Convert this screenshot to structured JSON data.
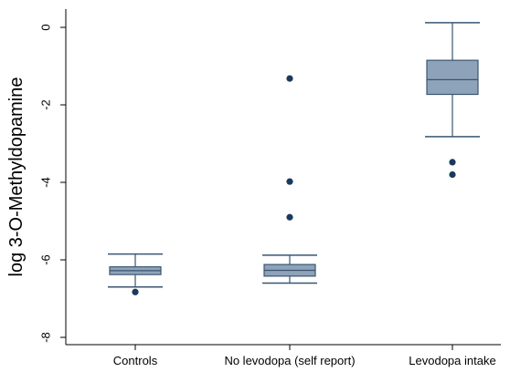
{
  "chart_data": {
    "type": "box",
    "title": "",
    "xlabel": "",
    "ylabel": "log 3-O-Methyldopamine",
    "categories": [
      "Controls",
      "No levodopa (self report)",
      "Levodopa intake"
    ],
    "ylim": [
      -8.5,
      0.5
    ],
    "yticks": [
      0,
      -2,
      -4,
      -6,
      -8
    ],
    "y_tick_labels": [
      "0",
      "-2",
      "-4",
      "-6",
      "-8"
    ],
    "grid": false,
    "colors": {
      "box_fill": "#8ea3ba",
      "box_stroke": "#3a5570",
      "outlier": "#1a3a5c"
    },
    "boxes": [
      {
        "category": "Controls",
        "whisker_low": -6.7,
        "q1": -6.38,
        "median": -6.28,
        "q3": -6.18,
        "whisker_high": -5.85,
        "outliers": [
          -6.83
        ]
      },
      {
        "category": "No levodopa (self report)",
        "whisker_low": -6.6,
        "q1": -6.42,
        "median": -6.27,
        "q3": -6.12,
        "whisker_high": -5.88,
        "outliers": [
          -1.32,
          -3.98,
          -4.9
        ]
      },
      {
        "category": "Levodopa intake",
        "whisker_low": -2.82,
        "q1": -1.73,
        "median": -1.35,
        "q3": -0.85,
        "whisker_high": 0.12,
        "outliers": [
          -3.48,
          -3.8
        ]
      }
    ]
  }
}
